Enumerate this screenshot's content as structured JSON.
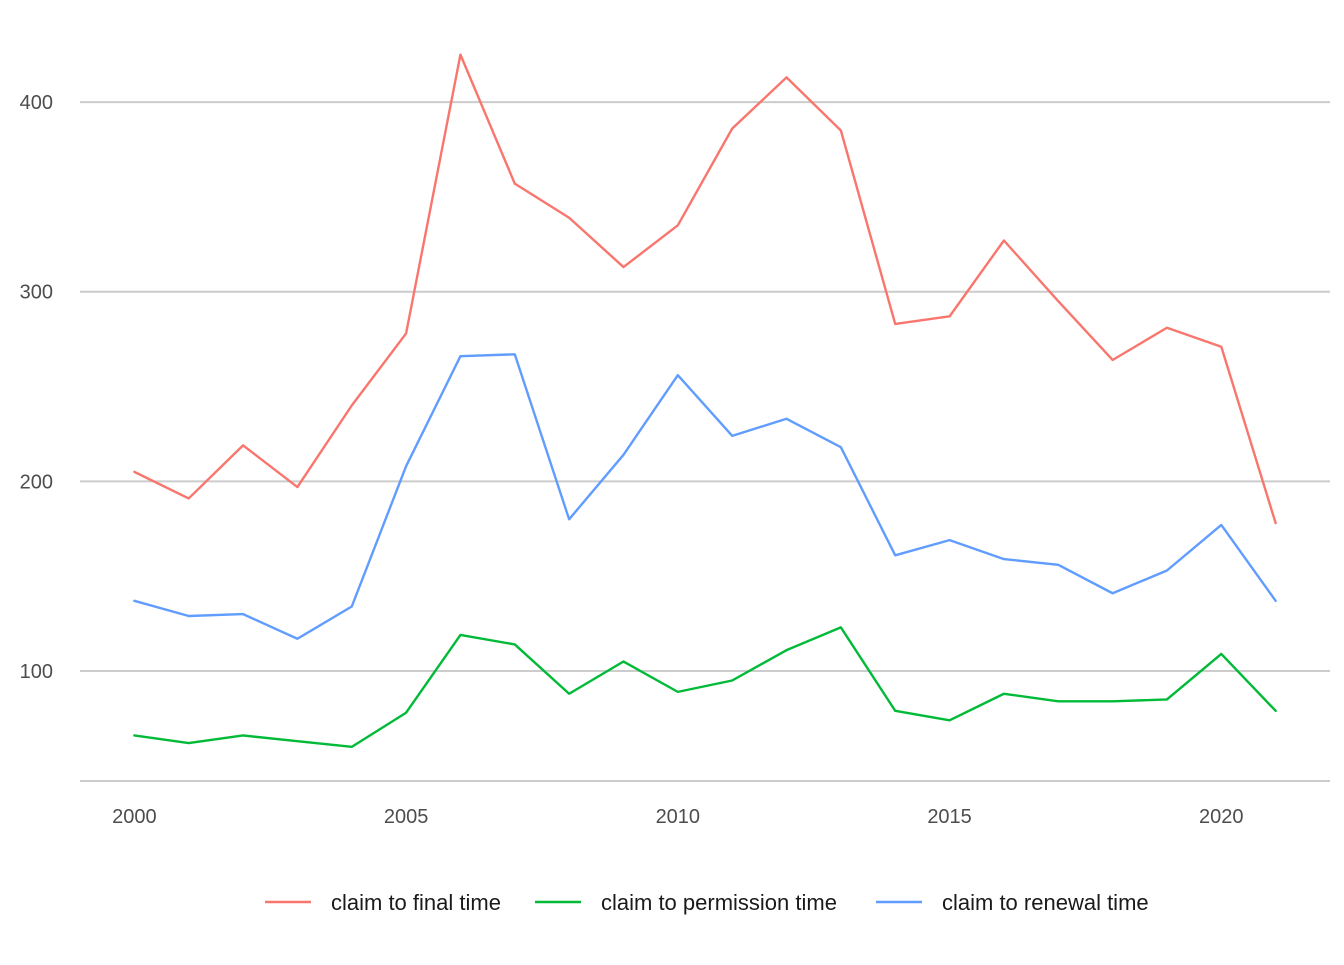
{
  "chart_data": {
    "type": "line",
    "title": "",
    "xlabel": "",
    "ylabel": "",
    "x": [
      2000,
      2001,
      2002,
      2003,
      2004,
      2005,
      2006,
      2007,
      2008,
      2009,
      2010,
      2011,
      2012,
      2013,
      2014,
      2015,
      2016,
      2017,
      2018,
      2019,
      2020,
      2021
    ],
    "xlim": [
      1999,
      2022
    ],
    "ylim": [
      42,
      438
    ],
    "x_ticks": [
      2000,
      2005,
      2010,
      2015,
      2020
    ],
    "y_ticks": [
      100,
      200,
      300,
      400
    ],
    "x_tick_labels": [
      "2000",
      "2005",
      "2010",
      "2015",
      "2020"
    ],
    "y_tick_labels": [
      "100",
      "200",
      "300",
      "400"
    ],
    "grid": "horizontal",
    "legend_position": "bottom",
    "series": [
      {
        "name": "claim to final time",
        "color": "#F8766D",
        "values": [
          205,
          191,
          219,
          197,
          240,
          278,
          425,
          357,
          339,
          313,
          335,
          386,
          413,
          385,
          283,
          287,
          327,
          295,
          264,
          281,
          271,
          178
        ]
      },
      {
        "name": "claim to permission time",
        "color": "#00BA38",
        "values": [
          66,
          62,
          66,
          63,
          60,
          78,
          119,
          114,
          88,
          105,
          89,
          95,
          111,
          123,
          79,
          74,
          88,
          84,
          84,
          85,
          109,
          79
        ]
      },
      {
        "name": "claim to renewal time",
        "color": "#619CFF",
        "values": [
          137,
          129,
          130,
          117,
          134,
          208,
          266,
          267,
          180,
          214,
          256,
          224,
          233,
          218,
          161,
          169,
          159,
          156,
          141,
          153,
          177,
          137
        ]
      }
    ]
  }
}
